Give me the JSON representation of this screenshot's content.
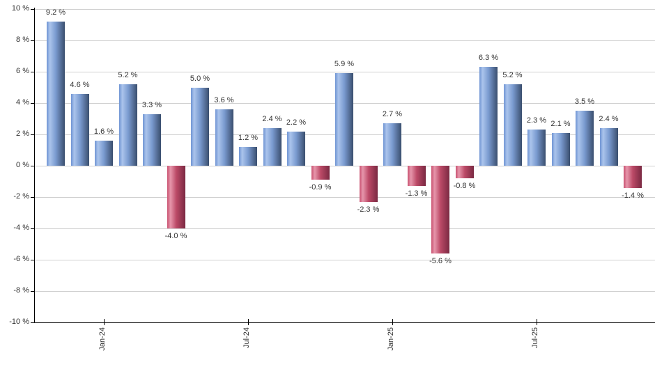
{
  "chart_data": {
    "type": "bar",
    "title": "",
    "xlabel": "",
    "ylabel": "",
    "ylim": [
      -10,
      10
    ],
    "y_tick_interval": 2,
    "grid": true,
    "legend_position": "none",
    "values": [
      9.2,
      4.6,
      1.6,
      5.2,
      3.3,
      -4.0,
      5.0,
      3.6,
      1.2,
      2.4,
      2.2,
      -0.9,
      5.9,
      -2.3,
      2.7,
      -1.3,
      -5.6,
      -0.8,
      6.3,
      5.2,
      2.3,
      2.1,
      3.5,
      2.4,
      -1.4
    ],
    "bar_labels": [
      "9.2 %",
      "4.6 %",
      "1.6 %",
      "5.2 %",
      "3.3 %",
      "-4.0 %",
      "5.0 %",
      "3.6 %",
      "1.2 %",
      "2.4 %",
      "2.2 %",
      "-0.9 %",
      "5.9 %",
      "-2.3 %",
      "2.7 %",
      "-1.3 %",
      "-5.6 %",
      "-0.8 %",
      "6.3 %",
      "5.2 %",
      "2.3 %",
      "2.1 %",
      "3.5 %",
      "2.4 %",
      "-1.4 %"
    ],
    "y_tick_labels": [
      "10 %",
      "8 %",
      "6 %",
      "4 %",
      "2 %",
      "0 %",
      "-2 %",
      "-4 %",
      "-6 %",
      "-8 %",
      "-10 %"
    ],
    "x_ticks": [
      {
        "label": "Jan-24",
        "bar_index": 2
      },
      {
        "label": "Jul-24",
        "bar_index": 8
      },
      {
        "label": "Jan-25",
        "bar_index": 14
      },
      {
        "label": "Jul-25",
        "bar_index": 20
      }
    ],
    "colors": {
      "positive_gradient": [
        "#6f94d3",
        "#abc4ec",
        "#7a9bd0",
        "#3a4e6e"
      ],
      "negative_gradient": [
        "#c95170",
        "#e696ab",
        "#bc4a67",
        "#7a2942"
      ],
      "grid": "#d0d0d0",
      "axis": "#000000",
      "label_text": "#333333",
      "background": "#ffffff"
    }
  }
}
